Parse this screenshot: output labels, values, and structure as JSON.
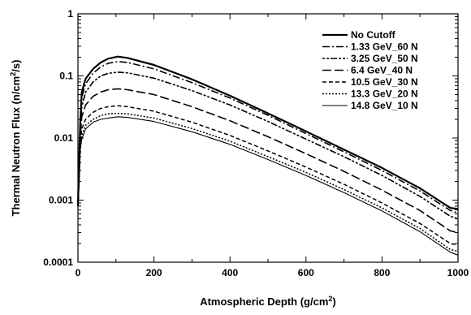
{
  "chart_data": {
    "type": "line",
    "xlabel": "Atmospheric Depth (g/cm²)",
    "xlabel_parts": {
      "pre": "Atmospheric Depth (g/cm",
      "sup": "2",
      "post": ")"
    },
    "ylabel": "Thermal Neutron Flux (n/cm²/s)",
    "ylabel_parts": {
      "pre": "Thermal Neutron Flux (n/cm",
      "sup": "2",
      "post": "/s)"
    },
    "xlim": [
      0,
      1000
    ],
    "ylim": [
      0.0001,
      1
    ],
    "yscale": "log",
    "x_ticks": [
      0,
      200,
      400,
      600,
      800,
      1000
    ],
    "x_tick_labels": [
      "0",
      "200",
      "400",
      "600",
      "800",
      "1000"
    ],
    "y_ticks": [
      1,
      0.1,
      0.01,
      0.001,
      0.0001
    ],
    "y_tick_labels": [
      "1",
      "0.1",
      "0.01",
      "0.001",
      "0.0001"
    ],
    "grid": false,
    "legend_position": "top-right",
    "series": [
      {
        "name": "No Cutoff",
        "dash": "",
        "stroke_width": 2.2,
        "points": [
          [
            0,
            0.0008
          ],
          [
            3,
            0.004
          ],
          [
            6,
            0.018
          ],
          [
            10,
            0.055
          ],
          [
            20,
            0.09
          ],
          [
            40,
            0.13
          ],
          [
            60,
            0.165
          ],
          [
            80,
            0.19
          ],
          [
            105,
            0.205
          ],
          [
            130,
            0.195
          ],
          [
            200,
            0.15
          ],
          [
            300,
            0.088
          ],
          [
            400,
            0.048
          ],
          [
            500,
            0.025
          ],
          [
            600,
            0.0128
          ],
          [
            700,
            0.0065
          ],
          [
            800,
            0.0033
          ],
          [
            900,
            0.00155
          ],
          [
            980,
            0.00075
          ],
          [
            1000,
            0.00072
          ]
        ]
      },
      {
        "name": "1.33 GeV_60 N",
        "dash": "9,3,2,3",
        "stroke_width": 1.6,
        "points": [
          [
            0,
            0.0008
          ],
          [
            3,
            0.0035
          ],
          [
            6,
            0.015
          ],
          [
            10,
            0.045
          ],
          [
            20,
            0.075
          ],
          [
            40,
            0.11
          ],
          [
            60,
            0.14
          ],
          [
            80,
            0.16
          ],
          [
            105,
            0.17
          ],
          [
            130,
            0.165
          ],
          [
            200,
            0.13
          ],
          [
            300,
            0.078
          ],
          [
            400,
            0.044
          ],
          [
            500,
            0.0232
          ],
          [
            600,
            0.0118
          ],
          [
            700,
            0.006
          ],
          [
            800,
            0.003
          ],
          [
            900,
            0.0014
          ],
          [
            980,
            0.00068
          ],
          [
            1000,
            0.00062
          ]
        ]
      },
      {
        "name": "3.25 GeV_50 N",
        "dash": "3,2,3,2,8,2",
        "stroke_width": 1.6,
        "points": [
          [
            0,
            0.0008
          ],
          [
            3,
            0.003
          ],
          [
            6,
            0.012
          ],
          [
            10,
            0.032
          ],
          [
            20,
            0.055
          ],
          [
            40,
            0.08
          ],
          [
            60,
            0.1
          ],
          [
            80,
            0.11
          ],
          [
            105,
            0.115
          ],
          [
            130,
            0.112
          ],
          [
            200,
            0.092
          ],
          [
            300,
            0.058
          ],
          [
            400,
            0.034
          ],
          [
            500,
            0.0185
          ],
          [
            600,
            0.0096
          ],
          [
            700,
            0.005
          ],
          [
            800,
            0.0025
          ],
          [
            900,
            0.00115
          ],
          [
            980,
            0.00055
          ],
          [
            1000,
            0.0005
          ]
        ]
      },
      {
        "name": "6.4 GeV_40 N",
        "dash": "11,4",
        "stroke_width": 1.6,
        "points": [
          [
            0,
            0.0008
          ],
          [
            3,
            0.0026
          ],
          [
            6,
            0.01
          ],
          [
            10,
            0.022
          ],
          [
            20,
            0.034
          ],
          [
            40,
            0.047
          ],
          [
            60,
            0.055
          ],
          [
            80,
            0.06
          ],
          [
            105,
            0.062
          ],
          [
            130,
            0.06
          ],
          [
            200,
            0.05
          ],
          [
            300,
            0.032
          ],
          [
            400,
            0.019
          ],
          [
            500,
            0.0105
          ],
          [
            600,
            0.0056
          ],
          [
            700,
            0.0029
          ],
          [
            800,
            0.00145
          ],
          [
            900,
            0.00068
          ],
          [
            980,
            0.00032
          ],
          [
            1000,
            0.0003
          ]
        ]
      },
      {
        "name": "10.5 GeV_30 N",
        "dash": "5,3",
        "stroke_width": 1.5,
        "points": [
          [
            0,
            0.0008
          ],
          [
            3,
            0.0022
          ],
          [
            6,
            0.008
          ],
          [
            10,
            0.014
          ],
          [
            20,
            0.02
          ],
          [
            40,
            0.026
          ],
          [
            60,
            0.03
          ],
          [
            80,
            0.032
          ],
          [
            105,
            0.033
          ],
          [
            130,
            0.032
          ],
          [
            200,
            0.027
          ],
          [
            300,
            0.018
          ],
          [
            400,
            0.011
          ],
          [
            500,
            0.0062
          ],
          [
            600,
            0.0034
          ],
          [
            700,
            0.0018
          ],
          [
            800,
            0.0009
          ],
          [
            900,
            0.00042
          ],
          [
            980,
            0.0002
          ],
          [
            1000,
            0.00019
          ]
        ]
      },
      {
        "name": "13.3 GeV_20 N",
        "dash": "2,2",
        "stroke_width": 1.5,
        "points": [
          [
            0,
            0.0008
          ],
          [
            3,
            0.002
          ],
          [
            6,
            0.007
          ],
          [
            10,
            0.011
          ],
          [
            20,
            0.016
          ],
          [
            40,
            0.02
          ],
          [
            60,
            0.023
          ],
          [
            80,
            0.0245
          ],
          [
            105,
            0.025
          ],
          [
            130,
            0.0245
          ],
          [
            200,
            0.021
          ],
          [
            300,
            0.0142
          ],
          [
            400,
            0.0089
          ],
          [
            500,
            0.005
          ],
          [
            600,
            0.0028
          ],
          [
            700,
            0.00148
          ],
          [
            800,
            0.00075
          ],
          [
            900,
            0.00035
          ],
          [
            980,
            0.00016
          ],
          [
            1000,
            0.00015
          ]
        ]
      },
      {
        "name": "14.8 GeV_10 N",
        "dash": "",
        "stroke_width": 1.1,
        "points": [
          [
            0,
            0.0008
          ],
          [
            3,
            0.0019
          ],
          [
            6,
            0.0065
          ],
          [
            10,
            0.0095
          ],
          [
            20,
            0.014
          ],
          [
            40,
            0.018
          ],
          [
            60,
            0.02
          ],
          [
            80,
            0.021
          ],
          [
            105,
            0.022
          ],
          [
            130,
            0.0215
          ],
          [
            200,
            0.0185
          ],
          [
            300,
            0.0126
          ],
          [
            400,
            0.0079
          ],
          [
            500,
            0.0045
          ],
          [
            600,
            0.0025
          ],
          [
            700,
            0.00132
          ],
          [
            800,
            0.00067
          ],
          [
            900,
            0.00031
          ],
          [
            980,
            0.000145
          ],
          [
            1000,
            0.00013
          ]
        ]
      }
    ]
  }
}
